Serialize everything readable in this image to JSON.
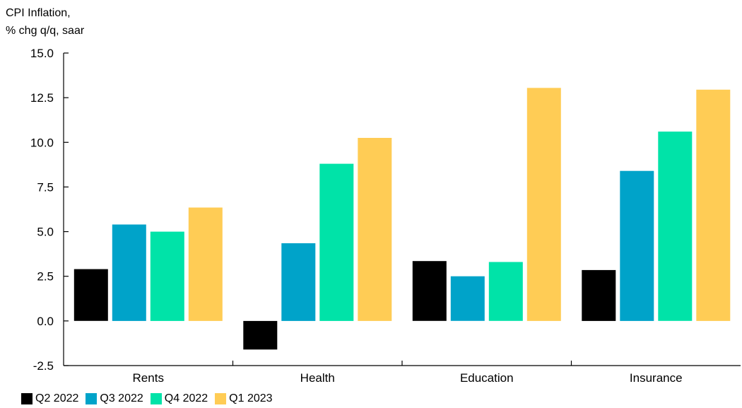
{
  "chart_data": {
    "type": "bar",
    "ylabel_lines": [
      "CPI Inflation,",
      "% chg q/q, saar"
    ],
    "categories": [
      "Rents",
      "Health",
      "Education",
      "Insurance"
    ],
    "series": [
      {
        "name": "Q2 2022",
        "color": "#000000",
        "values": [
          2.9,
          -1.6,
          3.35,
          2.85
        ]
      },
      {
        "name": "Q3 2022",
        "color": "#00A3C9",
        "values": [
          5.4,
          4.35,
          2.5,
          8.4
        ]
      },
      {
        "name": "Q4 2022",
        "color": "#00E3A8",
        "values": [
          5.0,
          8.8,
          3.3,
          10.6
        ]
      },
      {
        "name": "Q1 2023",
        "color": "#FFCC55",
        "values": [
          6.35,
          10.25,
          13.05,
          12.95
        ]
      }
    ],
    "ylim": [
      -2.5,
      15.0
    ],
    "yticks": [
      "-2.5",
      "0.0",
      "2.5",
      "5.0",
      "7.5",
      "10.0",
      "12.5",
      "15.0"
    ],
    "legend_position": "bottom"
  }
}
